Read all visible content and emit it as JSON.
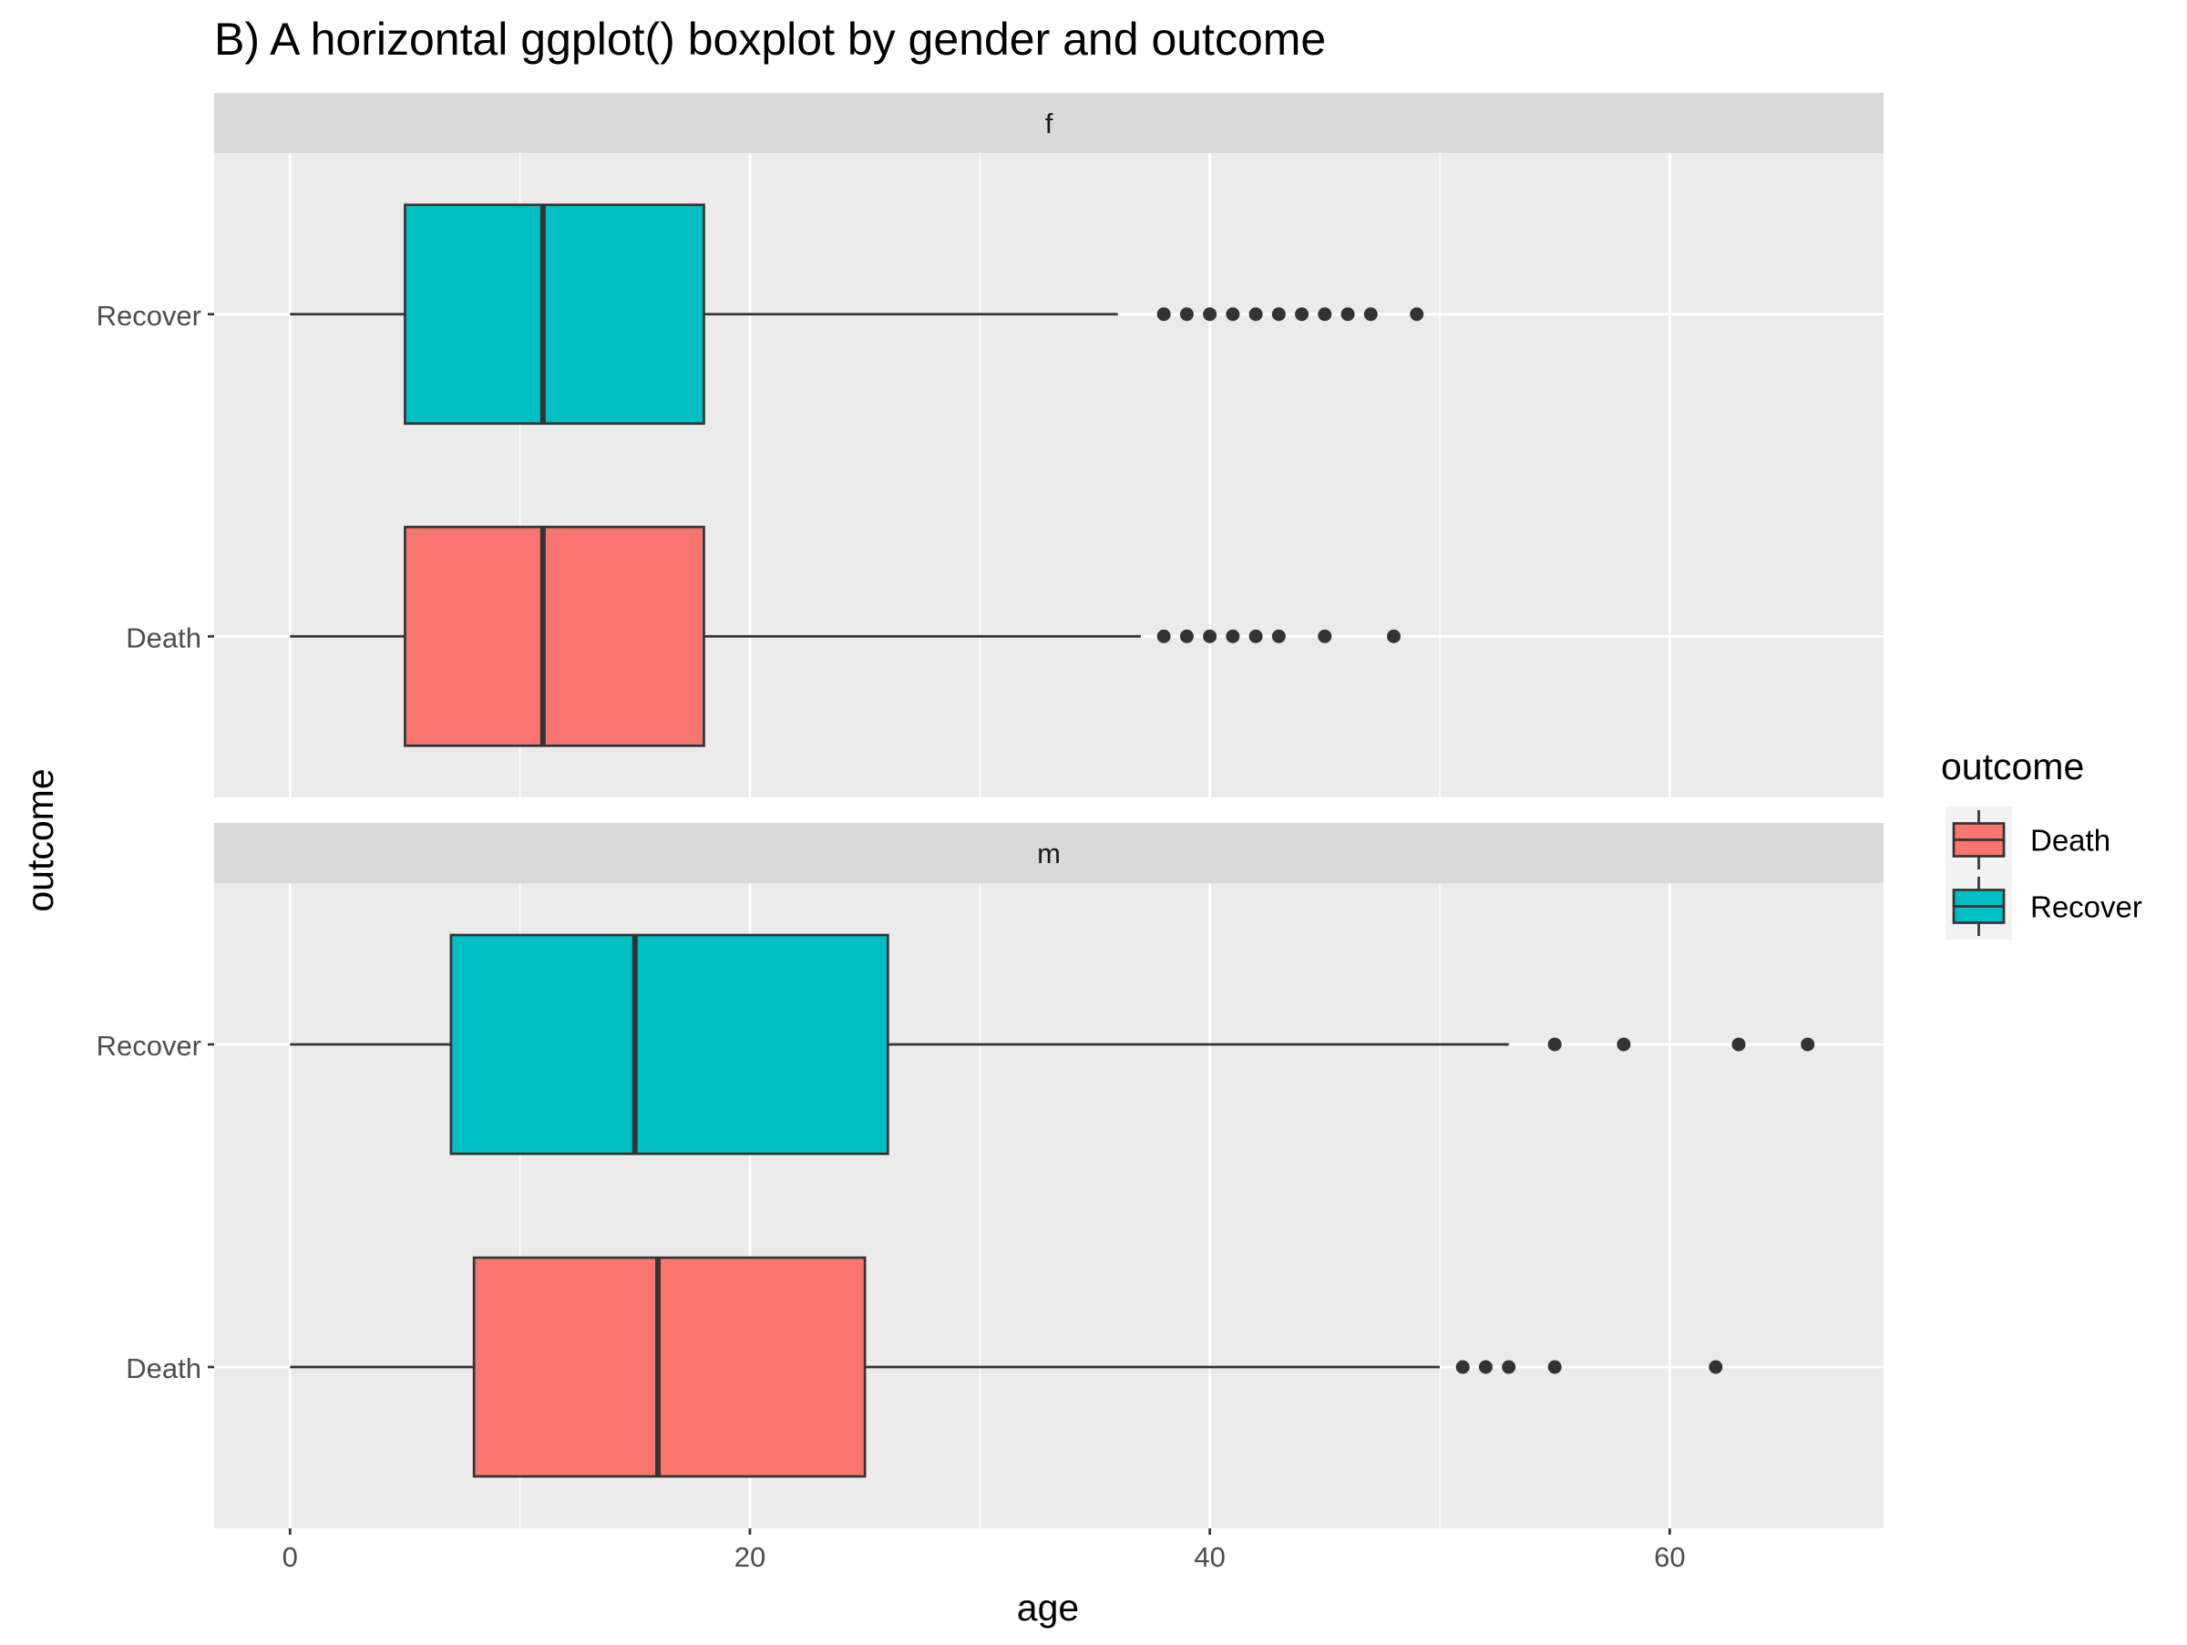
{
  "chart_data": {
    "type": "boxplot",
    "orientation": "horizontal",
    "title": "B) A horizontal ggplot() boxplot by gender and outcome",
    "xlabel": "age",
    "ylabel": "outcome",
    "xlim": [
      -3.3,
      69.3
    ],
    "x_ticks": [
      0,
      20,
      40,
      60
    ],
    "x_tick_labels": [
      "0",
      "20",
      "40",
      "60"
    ],
    "categories": [
      "Recover",
      "Death"
    ],
    "grid": true,
    "legend": {
      "title": "outcome",
      "placement": "right",
      "entries": [
        {
          "label": "Death",
          "color": "#F8766D"
        },
        {
          "label": "Recover",
          "color": "#00BFC4"
        }
      ]
    },
    "colors": {
      "Death": "#F8766D",
      "Recover": "#00BFC4",
      "panel_bg": "#EBEBEB",
      "strip_bg": "#D9D9D9",
      "grid": "#FFFFFF",
      "box_line": "#333333"
    },
    "facets": [
      {
        "strip": "f",
        "boxes": [
          {
            "outcome": "Recover",
            "min": 0,
            "q1": 5,
            "median": 11,
            "q3": 18,
            "max": 36,
            "outliers": [
              38,
              39,
              40,
              41,
              42,
              43,
              44,
              45,
              46,
              47,
              49
            ]
          },
          {
            "outcome": "Death",
            "min": 0,
            "q1": 5,
            "median": 11,
            "q3": 18,
            "max": 37,
            "outliers": [
              38,
              39,
              40,
              41,
              42,
              43,
              45,
              48
            ]
          }
        ]
      },
      {
        "strip": "m",
        "boxes": [
          {
            "outcome": "Recover",
            "min": 0,
            "q1": 7,
            "median": 15,
            "q3": 26,
            "max": 53,
            "outliers": [
              55,
              58,
              63,
              66
            ]
          },
          {
            "outcome": "Death",
            "min": 0,
            "q1": 8,
            "median": 16,
            "q3": 25,
            "max": 50,
            "outliers": [
              51,
              52,
              53,
              55,
              62
            ]
          }
        ]
      }
    ]
  }
}
